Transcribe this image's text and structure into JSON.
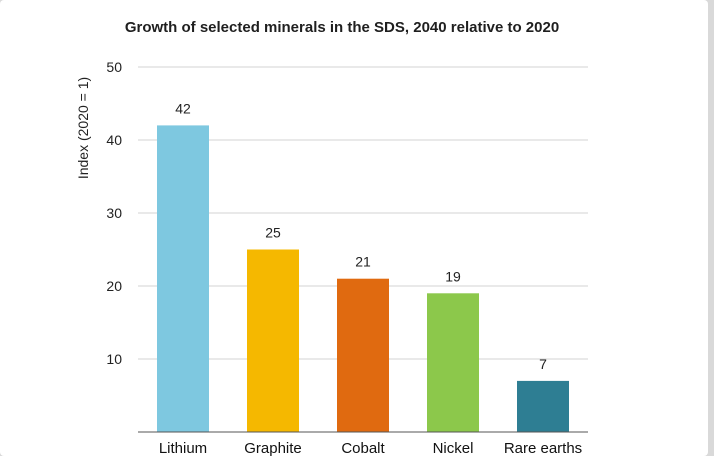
{
  "chart_data": {
    "type": "bar",
    "title": "Growth of selected minerals in the SDS, 2040 relative to 2020",
    "xlabel": "",
    "ylabel": "Index (2020 = 1)",
    "ylim": [
      0,
      50
    ],
    "yticks": [
      10,
      20,
      30,
      40,
      50
    ],
    "grid": true,
    "categories": [
      "Lithium",
      "Graphite",
      "Cobalt",
      "Nickel",
      "Rare earths"
    ],
    "values": [
      42,
      25,
      21,
      19,
      7
    ],
    "colors": [
      "#7ec8e0",
      "#f5b800",
      "#e06a10",
      "#8cc84b",
      "#2e7e93"
    ]
  }
}
